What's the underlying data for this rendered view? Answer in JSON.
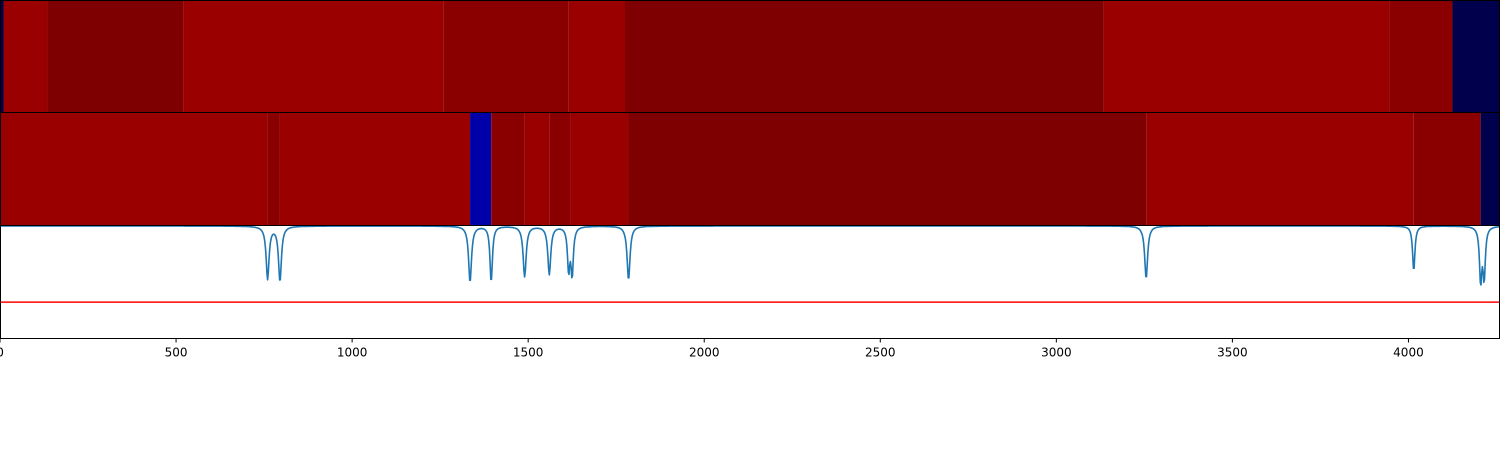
{
  "chart_data": {
    "type": "heatmap",
    "xlim": [
      0,
      4260
    ],
    "x_ticks": [
      0,
      500,
      1000,
      1500,
      2000,
      2500,
      3000,
      3500,
      4000
    ],
    "x_tick_labels": [
      "0",
      "500",
      "1000",
      "1500",
      "2000",
      "2500",
      "3000",
      "3500",
      "4000"
    ],
    "panels": [
      {
        "kind": "segments",
        "segments": [
          {
            "x0": 0,
            "x1": 10,
            "color": "#00004d"
          },
          {
            "x0": 10,
            "x1": 135,
            "color": "#9a0000"
          },
          {
            "x0": 135,
            "x1": 520,
            "color": "#7f0000"
          },
          {
            "x0": 520,
            "x1": 1260,
            "color": "#9a0000"
          },
          {
            "x0": 1260,
            "x1": 1615,
            "color": "#8a0000"
          },
          {
            "x0": 1615,
            "x1": 1775,
            "color": "#9a0000"
          },
          {
            "x0": 1775,
            "x1": 3135,
            "color": "#7f0000"
          },
          {
            "x0": 3135,
            "x1": 3945,
            "color": "#9a0000"
          },
          {
            "x0": 3945,
            "x1": 4125,
            "color": "#8a0000"
          },
          {
            "x0": 4125,
            "x1": 4260,
            "color": "#00004d"
          }
        ]
      },
      {
        "kind": "segments",
        "segments": [
          {
            "x0": 0,
            "x1": 760,
            "color": "#9a0000"
          },
          {
            "x0": 760,
            "x1": 795,
            "color": "#8a0000"
          },
          {
            "x0": 795,
            "x1": 1335,
            "color": "#9a0000"
          },
          {
            "x0": 1335,
            "x1": 1395,
            "color": "#0000a8"
          },
          {
            "x0": 1395,
            "x1": 1490,
            "color": "#8a0000"
          },
          {
            "x0": 1490,
            "x1": 1560,
            "color": "#9a0000"
          },
          {
            "x0": 1560,
            "x1": 1620,
            "color": "#8a0000"
          },
          {
            "x0": 1620,
            "x1": 1785,
            "color": "#9a0000"
          },
          {
            "x0": 1785,
            "x1": 3255,
            "color": "#7f0000"
          },
          {
            "x0": 3255,
            "x1": 4015,
            "color": "#9a0000"
          },
          {
            "x0": 4015,
            "x1": 4205,
            "color": "#8a0000"
          },
          {
            "x0": 4205,
            "x1": 4260,
            "color": "#00004d"
          }
        ]
      },
      {
        "kind": "line",
        "ylim": [
          0,
          1
        ],
        "threshold": 0.32,
        "threshold_color": "#ff0000",
        "line_color": "#1f77b4",
        "baseline": 1.0,
        "dips": [
          {
            "x": 760,
            "depth": 0.47,
            "width": 5
          },
          {
            "x": 795,
            "depth": 0.49,
            "width": 5
          },
          {
            "x": 1335,
            "depth": 0.5,
            "width": 5
          },
          {
            "x": 1395,
            "depth": 0.5,
            "width": 4
          },
          {
            "x": 1490,
            "depth": 0.45,
            "width": 5
          },
          {
            "x": 1560,
            "depth": 0.43,
            "width": 5
          },
          {
            "x": 1615,
            "depth": 0.38,
            "width": 4
          },
          {
            "x": 1625,
            "depth": 0.42,
            "width": 4
          },
          {
            "x": 1785,
            "depth": 0.48,
            "width": 5
          },
          {
            "x": 3255,
            "depth": 0.47,
            "width": 5
          },
          {
            "x": 4015,
            "depth": 0.4,
            "width": 4
          },
          {
            "x": 4205,
            "depth": 0.48,
            "width": 4
          },
          {
            "x": 4215,
            "depth": 0.45,
            "width": 4
          }
        ]
      }
    ]
  }
}
